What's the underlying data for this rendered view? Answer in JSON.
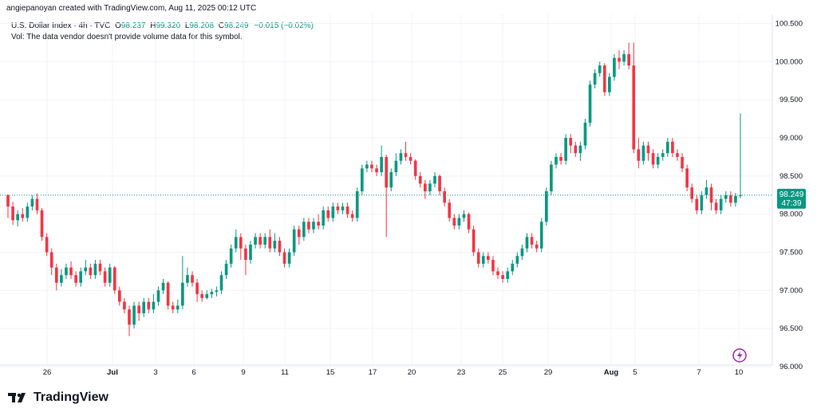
{
  "header": {
    "created_by": "angiepanoyan created with TradingView.com, Aug 11, 2025 00:12 UTC"
  },
  "legend": {
    "symbol": "U.S. Dollar Index · 4h · TVC",
    "open_label": "O",
    "open": "98.237",
    "high_label": "H",
    "high": "99.320",
    "low_label": "L",
    "low": "98.208",
    "close_label": "C",
    "close": "98.249",
    "change": "−0.015 (−0.02%)",
    "vol_note": "Vol: The data vendor doesn't provide volume data for this symbol."
  },
  "price_tag": {
    "price": "98.249",
    "countdown": "47:39"
  },
  "footer": {
    "logo_text": "TradingView"
  },
  "colors": {
    "up": "#089981",
    "down": "#f23645",
    "price_line": "#089981",
    "grid": "#f0f3fa"
  },
  "chart_data": {
    "type": "candlestick",
    "ylim": [
      96.0,
      100.6
    ],
    "y_ticks": [
      "100.500",
      "100.000",
      "99.500",
      "99.000",
      "98.500",
      "98.000",
      "97.500",
      "97.000",
      "96.500",
      "96.000"
    ],
    "x_ticks": [
      "26",
      "Jul",
      "3",
      "6",
      "9",
      "11",
      "15",
      "17",
      "20",
      "23",
      "25",
      "29",
      "Aug",
      "5",
      "7",
      "10"
    ],
    "last_price": 98.249,
    "candles": [
      [
        98.25,
        98.1,
        98.26,
        97.95
      ],
      [
        98.1,
        97.92,
        98.16,
        97.86
      ],
      [
        97.92,
        98.0,
        98.05,
        97.84
      ],
      [
        98.0,
        97.95,
        98.08,
        97.9
      ],
      [
        97.95,
        98.1,
        98.15,
        97.9
      ],
      [
        98.1,
        98.2,
        98.25,
        98.05
      ],
      [
        98.2,
        98.05,
        98.27,
        98.0
      ],
      [
        98.05,
        97.7,
        98.08,
        97.65
      ],
      [
        97.7,
        97.5,
        97.75,
        97.45
      ],
      [
        97.5,
        97.3,
        97.55,
        97.2
      ],
      [
        97.3,
        97.1,
        97.35,
        97.0
      ],
      [
        97.1,
        97.2,
        97.28,
        97.05
      ],
      [
        97.2,
        97.3,
        97.35,
        97.15
      ],
      [
        97.3,
        97.2,
        97.38,
        97.15
      ],
      [
        97.2,
        97.1,
        97.25,
        97.05
      ],
      [
        97.1,
        97.25,
        97.3,
        97.05
      ],
      [
        97.25,
        97.3,
        97.4,
        97.2
      ],
      [
        97.3,
        97.2,
        97.35,
        97.15
      ],
      [
        97.2,
        97.35,
        97.4,
        97.15
      ],
      [
        97.35,
        97.25,
        97.4,
        97.2
      ],
      [
        97.25,
        97.1,
        97.3,
        97.05
      ],
      [
        97.1,
        97.3,
        97.35,
        97.05
      ],
      [
        97.3,
        97.0,
        97.32,
        96.95
      ],
      [
        97.0,
        96.85,
        97.05,
        96.8
      ],
      [
        96.85,
        96.75,
        96.9,
        96.7
      ],
      [
        96.75,
        96.55,
        96.8,
        96.4
      ],
      [
        96.55,
        96.8,
        96.85,
        96.5
      ],
      [
        96.8,
        96.7,
        96.85,
        96.6
      ],
      [
        96.7,
        96.85,
        96.9,
        96.65
      ],
      [
        96.85,
        96.75,
        96.9,
        96.7
      ],
      [
        96.75,
        96.85,
        96.95,
        96.7
      ],
      [
        96.85,
        97.0,
        97.05,
        96.8
      ],
      [
        97.0,
        97.1,
        97.15,
        96.95
      ],
      [
        97.1,
        96.8,
        97.12,
        96.75
      ],
      [
        96.8,
        96.75,
        96.85,
        96.7
      ],
      [
        96.75,
        96.8,
        96.88,
        96.7
      ],
      [
        96.8,
        97.1,
        97.45,
        96.75
      ],
      [
        97.1,
        97.2,
        97.3,
        97.05
      ],
      [
        97.2,
        97.1,
        97.25,
        97.05
      ],
      [
        97.1,
        96.95,
        97.15,
        96.85
      ],
      [
        96.95,
        96.9,
        97.0,
        96.85
      ],
      [
        96.9,
        96.95,
        97.0,
        96.88
      ],
      [
        96.95,
        96.98,
        97.02,
        96.9
      ],
      [
        96.98,
        97.0,
        97.05,
        96.92
      ],
      [
        97.0,
        97.2,
        97.25,
        96.95
      ],
      [
        97.2,
        97.35,
        97.4,
        97.15
      ],
      [
        97.35,
        97.55,
        97.6,
        97.3
      ],
      [
        97.55,
        97.7,
        97.8,
        97.5
      ],
      [
        97.7,
        97.55,
        97.75,
        97.4
      ],
      [
        97.55,
        97.4,
        97.6,
        97.2
      ],
      [
        97.4,
        97.6,
        97.65,
        97.35
      ],
      [
        97.6,
        97.7,
        97.75,
        97.55
      ],
      [
        97.7,
        97.6,
        97.75,
        97.55
      ],
      [
        97.6,
        97.7,
        97.75,
        97.55
      ],
      [
        97.7,
        97.55,
        97.8,
        97.5
      ],
      [
        97.55,
        97.65,
        97.75,
        97.5
      ],
      [
        97.65,
        97.5,
        97.7,
        97.45
      ],
      [
        97.5,
        97.35,
        97.55,
        97.3
      ],
      [
        97.35,
        97.5,
        97.55,
        97.3
      ],
      [
        97.5,
        97.8,
        97.85,
        97.45
      ],
      [
        97.8,
        97.7,
        97.85,
        97.6
      ],
      [
        97.7,
        97.9,
        97.95,
        97.65
      ],
      [
        97.9,
        97.8,
        97.95,
        97.75
      ],
      [
        97.8,
        97.9,
        97.95,
        97.75
      ],
      [
        97.9,
        97.85,
        98.0,
        97.8
      ],
      [
        97.85,
        98.05,
        98.1,
        97.8
      ],
      [
        98.05,
        97.95,
        98.1,
        97.9
      ],
      [
        97.95,
        98.1,
        98.15,
        97.9
      ],
      [
        98.1,
        98.05,
        98.15,
        98.0
      ],
      [
        98.05,
        98.1,
        98.15,
        98.0
      ],
      [
        98.1,
        98.0,
        98.15,
        97.95
      ],
      [
        98.0,
        97.95,
        98.05,
        97.9
      ],
      [
        97.95,
        98.3,
        98.35,
        97.9
      ],
      [
        98.3,
        98.6,
        98.65,
        98.25
      ],
      [
        98.6,
        98.65,
        98.7,
        98.55
      ],
      [
        98.65,
        98.6,
        98.7,
        98.55
      ],
      [
        98.6,
        98.55,
        98.65,
        98.5
      ],
      [
        98.55,
        98.75,
        98.9,
        98.5
      ],
      [
        98.75,
        98.35,
        98.78,
        97.7
      ],
      [
        98.35,
        98.55,
        98.6,
        98.3
      ],
      [
        98.55,
        98.7,
        98.8,
        98.5
      ],
      [
        98.7,
        98.8,
        98.85,
        98.65
      ],
      [
        98.8,
        98.75,
        98.95,
        98.7
      ],
      [
        98.75,
        98.7,
        98.8,
        98.65
      ],
      [
        98.7,
        98.5,
        98.72,
        98.45
      ],
      [
        98.5,
        98.4,
        98.55,
        98.35
      ],
      [
        98.4,
        98.3,
        98.45,
        98.2
      ],
      [
        98.3,
        98.4,
        98.45,
        98.25
      ],
      [
        98.4,
        98.5,
        98.55,
        98.35
      ],
      [
        98.5,
        98.3,
        98.52,
        98.25
      ],
      [
        98.3,
        98.15,
        98.35,
        98.1
      ],
      [
        98.15,
        97.95,
        98.2,
        97.9
      ],
      [
        97.95,
        97.85,
        98.0,
        97.8
      ],
      [
        97.85,
        97.95,
        98.0,
        97.8
      ],
      [
        97.95,
        98.0,
        98.05,
        97.9
      ],
      [
        98.0,
        97.8,
        98.02,
        97.75
      ],
      [
        97.8,
        97.5,
        97.85,
        97.45
      ],
      [
        97.5,
        97.35,
        97.55,
        97.3
      ],
      [
        97.35,
        97.45,
        97.5,
        97.3
      ],
      [
        97.45,
        97.4,
        97.5,
        97.35
      ],
      [
        97.4,
        97.25,
        97.45,
        97.2
      ],
      [
        97.25,
        97.2,
        97.3,
        97.15
      ],
      [
        97.2,
        97.15,
        97.25,
        97.1
      ],
      [
        97.15,
        97.25,
        97.3,
        97.1
      ],
      [
        97.25,
        97.35,
        97.4,
        97.2
      ],
      [
        97.35,
        97.45,
        97.5,
        97.3
      ],
      [
        97.45,
        97.55,
        97.6,
        97.4
      ],
      [
        97.55,
        97.7,
        97.75,
        97.5
      ],
      [
        97.7,
        97.6,
        97.75,
        97.55
      ],
      [
        97.6,
        97.55,
        97.65,
        97.5
      ],
      [
        97.55,
        97.9,
        97.95,
        97.5
      ],
      [
        97.9,
        98.3,
        98.35,
        97.85
      ],
      [
        98.3,
        98.65,
        98.7,
        98.25
      ],
      [
        98.65,
        98.75,
        98.8,
        98.6
      ],
      [
        98.75,
        98.7,
        98.8,
        98.65
      ],
      [
        98.7,
        99.0,
        99.05,
        98.65
      ],
      [
        99.0,
        98.9,
        99.05,
        98.8
      ],
      [
        98.9,
        98.8,
        98.95,
        98.75
      ],
      [
        98.8,
        98.9,
        98.95,
        98.7
      ],
      [
        98.9,
        99.2,
        99.25,
        98.85
      ],
      [
        99.2,
        99.7,
        99.75,
        99.15
      ],
      [
        99.7,
        99.85,
        99.9,
        99.65
      ],
      [
        99.85,
        99.95,
        100.0,
        99.8
      ],
      [
        99.95,
        99.6,
        99.98,
        99.55
      ],
      [
        99.6,
        99.8,
        99.85,
        99.55
      ],
      [
        99.8,
        100.05,
        100.1,
        99.75
      ],
      [
        100.05,
        100.0,
        100.15,
        99.9
      ],
      [
        100.0,
        100.1,
        100.15,
        99.95
      ],
      [
        100.1,
        99.95,
        100.25,
        99.9
      ],
      [
        99.95,
        98.85,
        100.25,
        98.8
      ],
      [
        98.85,
        98.7,
        99.0,
        98.6
      ],
      [
        98.7,
        98.9,
        98.95,
        98.65
      ],
      [
        98.9,
        98.8,
        98.95,
        98.7
      ],
      [
        98.8,
        98.65,
        98.85,
        98.6
      ],
      [
        98.65,
        98.75,
        98.8,
        98.6
      ],
      [
        98.75,
        98.8,
        98.85,
        98.7
      ],
      [
        98.8,
        98.95,
        99.0,
        98.75
      ],
      [
        98.95,
        98.8,
        99.0,
        98.75
      ],
      [
        98.8,
        98.75,
        98.85,
        98.7
      ],
      [
        98.75,
        98.6,
        98.8,
        98.55
      ],
      [
        98.6,
        98.35,
        98.65,
        98.3
      ],
      [
        98.35,
        98.2,
        98.4,
        98.15
      ],
      [
        98.2,
        98.05,
        98.25,
        98.0
      ],
      [
        98.05,
        98.25,
        98.3,
        98.0
      ],
      [
        98.25,
        98.35,
        98.45,
        98.2
      ],
      [
        98.35,
        98.15,
        98.4,
        98.05
      ],
      [
        98.15,
        98.05,
        98.2,
        98.0
      ],
      [
        98.05,
        98.2,
        98.25,
        98.0
      ],
      [
        98.2,
        98.25,
        98.3,
        98.15
      ],
      [
        98.25,
        98.15,
        98.3,
        98.1
      ],
      [
        98.15,
        98.24,
        98.28,
        98.1
      ],
      [
        98.237,
        98.249,
        99.32,
        98.208
      ]
    ]
  }
}
